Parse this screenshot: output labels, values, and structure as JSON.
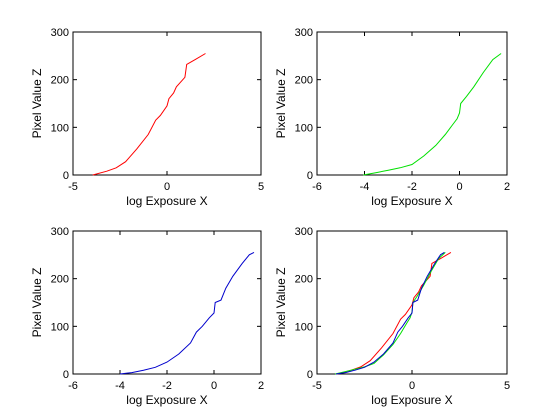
{
  "chart_data": [
    {
      "type": "line",
      "xlabel": "log Exposure X",
      "ylabel": "Pixel Value Z",
      "xlim": [
        -5,
        5
      ],
      "ylim": [
        0,
        300
      ],
      "xticks": [
        -5,
        0,
        5
      ],
      "yticks": [
        0,
        100,
        200,
        300
      ],
      "grid": false,
      "series": [
        {
          "color": "#ff0000",
          "x": [
            -3.95,
            -3.2,
            -2.7,
            -2.2,
            -1.6,
            -1.0,
            -0.6,
            -0.35,
            0.0,
            0.1,
            0.35,
            0.5,
            0.8,
            0.95,
            1.05,
            1.5,
            2.05
          ],
          "y": [
            0,
            8,
            15,
            28,
            55,
            85,
            115,
            125,
            145,
            160,
            172,
            185,
            198,
            205,
            232,
            242,
            255
          ]
        }
      ]
    },
    {
      "type": "line",
      "xlabel": "log Exposure X",
      "ylabel": "Pixel Value Z",
      "xlim": [
        -6,
        2
      ],
      "ylim": [
        0,
        300
      ],
      "xticks": [
        -6,
        -4,
        -2,
        0,
        2
      ],
      "yticks": [
        0,
        100,
        200,
        300
      ],
      "grid": false,
      "series": [
        {
          "color": "#00e000",
          "x": [
            -4.05,
            -3.5,
            -3.0,
            -2.5,
            -2.0,
            -1.5,
            -1.0,
            -0.6,
            -0.3,
            -0.1,
            0.0,
            0.05,
            0.3,
            0.6,
            1.0,
            1.4,
            1.75
          ],
          "y": [
            0,
            5,
            10,
            15,
            22,
            40,
            62,
            85,
            105,
            118,
            130,
            150,
            165,
            185,
            215,
            242,
            255
          ]
        }
      ]
    },
    {
      "type": "line",
      "xlabel": "log Exposure X",
      "ylabel": "Pixel Value Z",
      "xlim": [
        -6,
        2
      ],
      "ylim": [
        0,
        300
      ],
      "xticks": [
        -6,
        -4,
        -2,
        0,
        2
      ],
      "yticks": [
        0,
        100,
        200,
        300
      ],
      "grid": false,
      "series": [
        {
          "color": "#0000cc",
          "x": [
            -4.0,
            -3.5,
            -3.0,
            -2.5,
            -2.0,
            -1.5,
            -1.0,
            -0.75,
            -0.5,
            -0.2,
            0.0,
            0.05,
            0.3,
            0.5,
            0.8,
            1.2,
            1.5,
            1.7
          ],
          "y": [
            0,
            3,
            8,
            14,
            25,
            42,
            65,
            88,
            100,
            118,
            128,
            150,
            155,
            180,
            205,
            232,
            250,
            255
          ]
        }
      ]
    },
    {
      "type": "line",
      "xlabel": "log Exposure X",
      "ylabel": "Pixel Value Z",
      "xlim": [
        -5,
        5
      ],
      "ylim": [
        0,
        300
      ],
      "xticks": [
        -5,
        0,
        5
      ],
      "yticks": [
        0,
        100,
        200,
        300
      ],
      "grid": false,
      "series": [
        {
          "color": "#ff0000",
          "x": [
            -3.95,
            -3.2,
            -2.7,
            -2.2,
            -1.6,
            -1.0,
            -0.6,
            -0.35,
            0.0,
            0.1,
            0.35,
            0.5,
            0.8,
            0.95,
            1.05,
            1.5,
            2.05
          ],
          "y": [
            0,
            8,
            15,
            28,
            55,
            85,
            115,
            125,
            145,
            160,
            172,
            185,
            198,
            205,
            232,
            242,
            255
          ]
        },
        {
          "color": "#00e000",
          "x": [
            -4.05,
            -3.5,
            -3.0,
            -2.5,
            -2.0,
            -1.5,
            -1.0,
            -0.6,
            -0.3,
            -0.1,
            0.0,
            0.05,
            0.3,
            0.6,
            1.0,
            1.4,
            1.75
          ],
          "y": [
            0,
            5,
            10,
            15,
            22,
            40,
            62,
            85,
            105,
            118,
            130,
            150,
            165,
            185,
            215,
            242,
            255
          ]
        },
        {
          "color": "#0000cc",
          "x": [
            -4.0,
            -3.5,
            -3.0,
            -2.5,
            -2.0,
            -1.5,
            -1.0,
            -0.75,
            -0.5,
            -0.2,
            0.0,
            0.05,
            0.3,
            0.5,
            0.8,
            1.2,
            1.5,
            1.7
          ],
          "y": [
            0,
            3,
            8,
            14,
            25,
            42,
            65,
            88,
            100,
            118,
            128,
            150,
            155,
            180,
            205,
            232,
            250,
            255
          ]
        }
      ]
    }
  ]
}
